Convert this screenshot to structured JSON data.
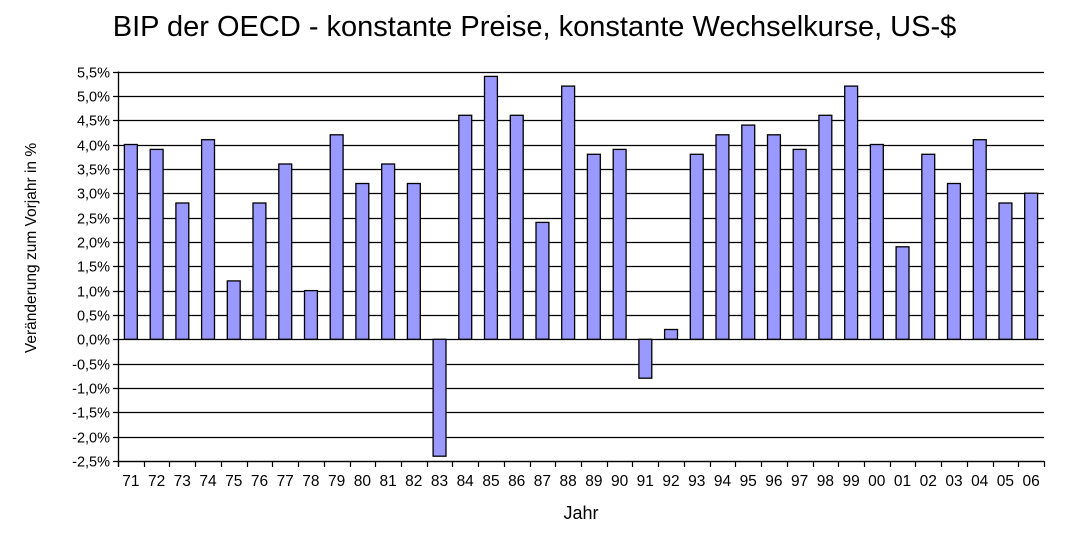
{
  "chart_data": {
    "type": "bar",
    "title": "BIP der OECD - konstante Preise, konstante Wechselkurse, US-$",
    "xlabel": "Jahr",
    "ylabel": "Veränderung zum Vorjahr in %",
    "ylim": [
      -2.5,
      5.5
    ],
    "ytick_step": 0.5,
    "ytick_labels": [
      "5,5%",
      "5,0%",
      "4,5%",
      "4,0%",
      "3,5%",
      "3,0%",
      "2,5%",
      "2,0%",
      "1,5%",
      "1,0%",
      "0,5%",
      "0,0%",
      "-0,5%",
      "-1,0%",
      "-1,5%",
      "-2,0%",
      "-2,5%"
    ],
    "grid": true,
    "legend": null,
    "categories": [
      "71",
      "72",
      "73",
      "74",
      "75",
      "76",
      "77",
      "78",
      "79",
      "80",
      "81",
      "82",
      "83",
      "84",
      "85",
      "86",
      "87",
      "88",
      "89",
      "90",
      "91",
      "92",
      "93",
      "94",
      "95",
      "96",
      "97",
      "98",
      "99",
      "00",
      "01",
      "02",
      "03",
      "04",
      "05",
      "06"
    ],
    "values": [
      4.0,
      3.9,
      2.8,
      4.1,
      1.2,
      2.8,
      3.6,
      1.0,
      4.2,
      3.2,
      3.6,
      3.2,
      -2.4,
      4.6,
      5.4,
      4.6,
      2.4,
      5.2,
      3.8,
      3.9,
      -0.8,
      0.2,
      3.8,
      4.2,
      4.4,
      4.2,
      3.9,
      4.6,
      5.2,
      4.0,
      1.9,
      3.8,
      3.2,
      4.1,
      2.8,
      3.0
    ],
    "colors": {
      "bar_fill": "#9999ff",
      "bar_stroke": "#000000",
      "grid": "#000000",
      "background": "#ffffff"
    }
  }
}
